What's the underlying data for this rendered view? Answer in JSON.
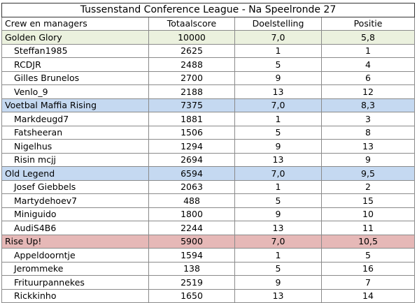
{
  "title": "Tussenstand Conference League - Na Speelronde 27",
  "columns": [
    "Crew en managers",
    "Totaalscore",
    "Doelstelling",
    "Positie"
  ],
  "crews": [
    {
      "name": "Golden Glory",
      "total": "10000",
      "target": "7,0",
      "position": "5,8",
      "color": "#ebf1de",
      "managers": [
        {
          "name": "Steffan1985",
          "total": "2625",
          "target": "1",
          "position": "1"
        },
        {
          "name": "RCDJR",
          "total": "2488",
          "target": "5",
          "position": "4"
        },
        {
          "name": "Gilles Brunelos",
          "total": "2700",
          "target": "9",
          "position": "6"
        },
        {
          "name": "Venlo_9",
          "total": "2188",
          "target": "13",
          "position": "12"
        }
      ]
    },
    {
      "name": "Voetbal Maffia Rising",
      "total": "7375",
      "target": "7,0",
      "position": "8,3",
      "color": "#c5d9f1",
      "managers": [
        {
          "name": "Markdeugd7",
          "total": "1881",
          "target": "1",
          "position": "3"
        },
        {
          "name": "Fatsheeran",
          "total": "1506",
          "target": "5",
          "position": "8"
        },
        {
          "name": "Nigelhus",
          "total": "1294",
          "target": "9",
          "position": "13"
        },
        {
          "name": "Risin mcjj",
          "total": "2694",
          "target": "13",
          "position": "9"
        }
      ]
    },
    {
      "name": "Old Legend",
      "total": "6594",
      "target": "7,0",
      "position": "9,5",
      "color": "#c5d9f1",
      "managers": [
        {
          "name": "Josef Giebbels",
          "total": "2063",
          "target": "1",
          "position": "2"
        },
        {
          "name": "Martydehoev7",
          "total": "488",
          "target": "5",
          "position": "15"
        },
        {
          "name": "Miniguido",
          "total": "1800",
          "target": "9",
          "position": "10"
        },
        {
          "name": "AudiS4B6",
          "total": "2244",
          "target": "13",
          "position": "11"
        }
      ]
    },
    {
      "name": "Rise Up!",
      "total": "5900",
      "target": "7,0",
      "position": "10,5",
      "color": "#e6b8b7",
      "managers": [
        {
          "name": "Appeldoorntje",
          "total": "1594",
          "target": "1",
          "position": "5"
        },
        {
          "name": "Jerommeke",
          "total": "138",
          "target": "5",
          "position": "16"
        },
        {
          "name": "Frituurpannekes",
          "total": "2519",
          "target": "9",
          "position": "7"
        },
        {
          "name": "Rickkinho",
          "total": "1650",
          "target": "13",
          "position": "14"
        }
      ]
    }
  ]
}
